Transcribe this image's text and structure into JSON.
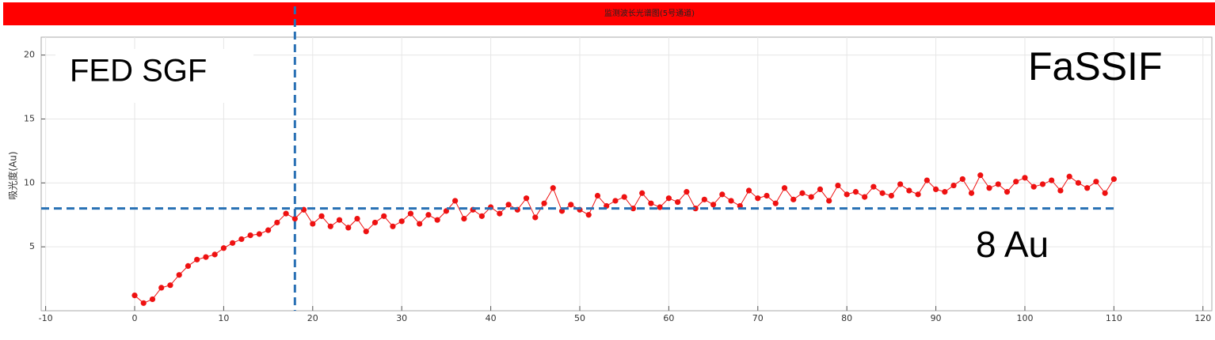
{
  "chart_data": {
    "type": "line",
    "title": "监测波长光谱图(5号通道)",
    "y_label": "吸光度(Au)",
    "annotations": [
      "FED SGF",
      "FaSSIF",
      "8 Au"
    ],
    "reference_x": 18,
    "reference_y": 8,
    "reference_color": "#2870b4",
    "xlim": [
      -10.5,
      121
    ],
    "xticks": [
      -10,
      0,
      10,
      20,
      30,
      40,
      50,
      60,
      70,
      80,
      90,
      100,
      110,
      120
    ],
    "ylim": [
      0,
      21.4
    ],
    "yticks": [
      5,
      10,
      15,
      20
    ],
    "grid": true,
    "x": [
      0,
      1,
      2,
      3,
      4,
      5,
      6,
      7,
      8,
      9,
      10,
      11,
      12,
      13,
      14,
      15,
      16,
      17,
      18,
      19,
      20,
      21,
      22,
      23,
      24,
      25,
      26,
      27,
      28,
      29,
      30,
      31,
      32,
      33,
      34,
      35,
      36,
      37,
      38,
      39,
      40,
      41,
      42,
      43,
      44,
      45,
      46,
      47,
      48,
      49,
      50,
      51,
      52,
      53,
      54,
      55,
      56,
      57,
      58,
      59,
      60,
      61,
      62,
      63,
      64,
      65,
      66,
      67,
      68,
      69,
      70,
      71,
      72,
      73,
      74,
      75,
      76,
      77,
      78,
      79,
      80,
      81,
      82,
      83,
      84,
      85,
      86,
      87,
      88,
      89,
      90,
      91,
      92,
      93,
      94,
      95,
      96,
      97,
      98,
      99,
      100,
      101,
      102,
      103,
      104,
      105,
      106,
      107,
      108,
      109,
      110
    ],
    "series": [
      {
        "name": "吸光度",
        "color": "#ee1111",
        "values": [
          1.2,
          0.6,
          0.9,
          1.8,
          2.0,
          2.8,
          3.5,
          4.0,
          4.2,
          4.4,
          4.9,
          5.3,
          5.6,
          5.9,
          6.0,
          6.3,
          6.9,
          7.6,
          7.2,
          7.9,
          6.8,
          7.4,
          6.6,
          7.1,
          6.5,
          7.2,
          6.2,
          6.9,
          7.4,
          6.6,
          7.0,
          7.6,
          6.8,
          7.5,
          7.1,
          7.8,
          8.6,
          7.2,
          7.9,
          7.4,
          8.1,
          7.6,
          8.3,
          7.9,
          8.8,
          7.3,
          8.4,
          9.6,
          7.8,
          8.3,
          7.9,
          7.5,
          9.0,
          8.2,
          8.6,
          8.9,
          8.0,
          9.2,
          8.4,
          8.1,
          8.8,
          8.5,
          9.3,
          8.0,
          8.7,
          8.3,
          9.1,
          8.6,
          8.2,
          9.4,
          8.8,
          9.0,
          8.4,
          9.6,
          8.7,
          9.2,
          8.9,
          9.5,
          8.6,
          9.8,
          9.1,
          9.3,
          8.9,
          9.7,
          9.2,
          9.0,
          9.9,
          9.4,
          9.1,
          10.2,
          9.5,
          9.3,
          9.8,
          10.3,
          9.2,
          10.6,
          9.6,
          9.9,
          9.3,
          10.1,
          10.4,
          9.7,
          9.9,
          10.2,
          9.4,
          10.5,
          10.0,
          9.6,
          10.1,
          9.2,
          10.3
        ]
      }
    ]
  }
}
